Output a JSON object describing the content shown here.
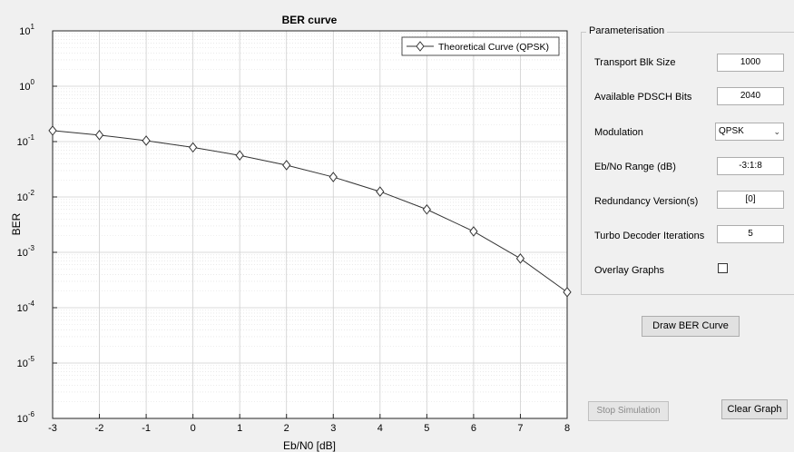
{
  "chart_data": {
    "type": "line",
    "title": "BER curve",
    "xlabel": "Eb/N0 [dB]",
    "ylabel": "BER",
    "xlim": [
      -3,
      8
    ],
    "ylim": [
      1e-06,
      10
    ],
    "yscale": "log",
    "grid": true,
    "legend": "top-right",
    "x_ticks": [
      "-3",
      "-2",
      "-1",
      "0",
      "1",
      "2",
      "3",
      "4",
      "5",
      "6",
      "7",
      "8"
    ],
    "y_ticks": [
      {
        "base": "10",
        "exp": "1"
      },
      {
        "base": "10",
        "exp": "0"
      },
      {
        "base": "10",
        "exp": "-1"
      },
      {
        "base": "10",
        "exp": "-2"
      },
      {
        "base": "10",
        "exp": "-3"
      },
      {
        "base": "10",
        "exp": "-4"
      },
      {
        "base": "10",
        "exp": "-5"
      },
      {
        "base": "10",
        "exp": "-6"
      }
    ],
    "series": [
      {
        "name": "Theoretical Curve (QPSK)",
        "color": "#333333",
        "marker": "diamond",
        "x": [
          -3,
          -2,
          -1,
          0,
          1,
          2,
          3,
          4,
          5,
          6,
          7,
          8
        ],
        "y": [
          0.158,
          0.131,
          0.104,
          0.0786,
          0.0563,
          0.0375,
          0.0229,
          0.0125,
          0.00595,
          0.00239,
          0.000773,
          0.000191
        ]
      }
    ]
  },
  "panel": {
    "title": "Parameterisation",
    "transport_blk_size": {
      "label": "Transport Blk Size",
      "value": "1000"
    },
    "pdsch_bits": {
      "label": "Available PDSCH Bits",
      "value": "2040"
    },
    "modulation": {
      "label": "Modulation",
      "value": "QPSK"
    },
    "ebno_range": {
      "label": "Eb/No Range (dB)",
      "value": "-3:1:8"
    },
    "redundancy": {
      "label": "Redundancy Version(s)",
      "value": "[0]"
    },
    "turbo_iters": {
      "label": "Turbo Decoder Iterations",
      "value": "5"
    },
    "overlay": {
      "label": "Overlay Graphs",
      "checked": false
    }
  },
  "buttons": {
    "draw": "Draw BER Curve",
    "stop": "Stop Simulation",
    "clear": "Clear Graph"
  }
}
